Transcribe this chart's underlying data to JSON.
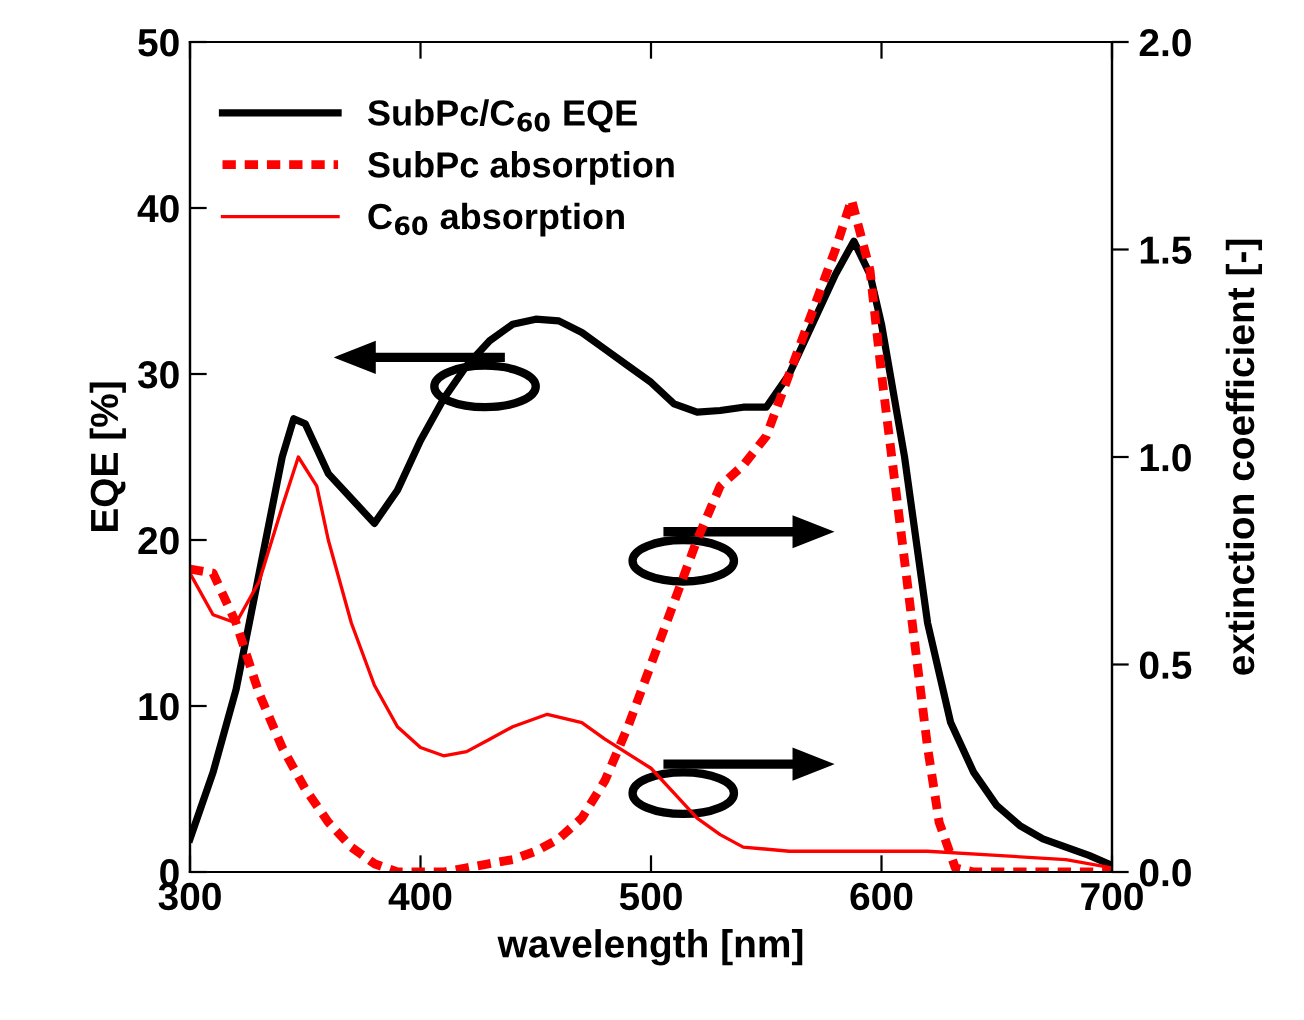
{
  "chart_data": {
    "type": "line",
    "xlabel": "wavelength [nm]",
    "ylabel": "EQE [%]",
    "y2label": "extinction coefficient [-]",
    "xlim": [
      300,
      700
    ],
    "xticks": [
      300,
      400,
      500,
      600,
      700
    ],
    "ylim": [
      0,
      50
    ],
    "yticks": [
      0,
      10,
      20,
      30,
      40,
      50
    ],
    "y2lim": [
      0,
      2.0
    ],
    "y2ticks": [
      {
        "value": 0,
        "label": "0.0"
      },
      {
        "value": 0.5,
        "label": "0.5"
      },
      {
        "value": 1.0,
        "label": "1.0"
      },
      {
        "value": 1.5,
        "label": "1.5"
      },
      {
        "value": 2.0,
        "label": "2.0"
      }
    ],
    "grid": false,
    "legend": "top left",
    "marker": "none",
    "series": [
      {
        "name": "SubPc/C$_{60}$ EQE",
        "color": "#000000",
        "line_style": "solid",
        "axis": "y",
        "x": [
          300,
          310,
          320,
          330,
          340,
          345,
          350,
          360,
          370,
          380,
          390,
          400,
          410,
          420,
          430,
          440,
          450,
          460,
          470,
          480,
          490,
          500,
          510,
          520,
          530,
          540,
          550,
          560,
          570,
          580,
          588,
          595,
          600,
          610,
          620,
          630,
          640,
          650,
          660,
          670,
          680,
          690,
          700
        ],
        "values": [
          2,
          6,
          11,
          18,
          25,
          27.3,
          27,
          24,
          22.5,
          21,
          23,
          26,
          28.5,
          30.5,
          32,
          33,
          33.3,
          33.2,
          32.5,
          31.5,
          30.5,
          29.5,
          28.2,
          27.7,
          27.8,
          28,
          28,
          30,
          33,
          36,
          38,
          36,
          33,
          25,
          15,
          9,
          6,
          4,
          2.8,
          2,
          1.5,
          1,
          0.4
        ]
      },
      {
        "name": "SubPc absorption",
        "color": "#ff0000",
        "line_style": "dashed",
        "axis": "y2",
        "x": [
          300,
          310,
          320,
          330,
          340,
          350,
          360,
          370,
          380,
          390,
          400,
          410,
          420,
          430,
          440,
          450,
          460,
          470,
          480,
          490,
          500,
          510,
          520,
          530,
          540,
          550,
          560,
          570,
          580,
          587,
          595,
          600,
          610,
          620,
          625,
          632,
          640,
          700
        ],
        "values": [
          0.73,
          0.72,
          0.6,
          0.43,
          0.3,
          0.2,
          0.12,
          0.06,
          0.02,
          0.0,
          0.0,
          0.0,
          0.01,
          0.02,
          0.03,
          0.05,
          0.08,
          0.13,
          0.22,
          0.35,
          0.5,
          0.65,
          0.8,
          0.93,
          0.98,
          1.05,
          1.2,
          1.35,
          1.5,
          1.62,
          1.45,
          1.2,
          0.75,
          0.3,
          0.12,
          0.01,
          0.0,
          0.0
        ]
      },
      {
        "name": "C$_{60}$ absorption",
        "color": "#ff0000",
        "line_style": "solid",
        "axis": "y2",
        "x": [
          300,
          310,
          320,
          330,
          340,
          347,
          355,
          360,
          370,
          380,
          390,
          400,
          410,
          420,
          430,
          440,
          455,
          470,
          480,
          500,
          510,
          520,
          530,
          540,
          560,
          580,
          600,
          620,
          650,
          680,
          700
        ],
        "values": [
          0.72,
          0.62,
          0.6,
          0.7,
          0.88,
          1.0,
          0.93,
          0.8,
          0.6,
          0.45,
          0.35,
          0.3,
          0.28,
          0.29,
          0.32,
          0.35,
          0.38,
          0.36,
          0.32,
          0.25,
          0.19,
          0.13,
          0.09,
          0.06,
          0.05,
          0.05,
          0.05,
          0.05,
          0.04,
          0.03,
          0.01
        ]
      }
    ]
  }
}
